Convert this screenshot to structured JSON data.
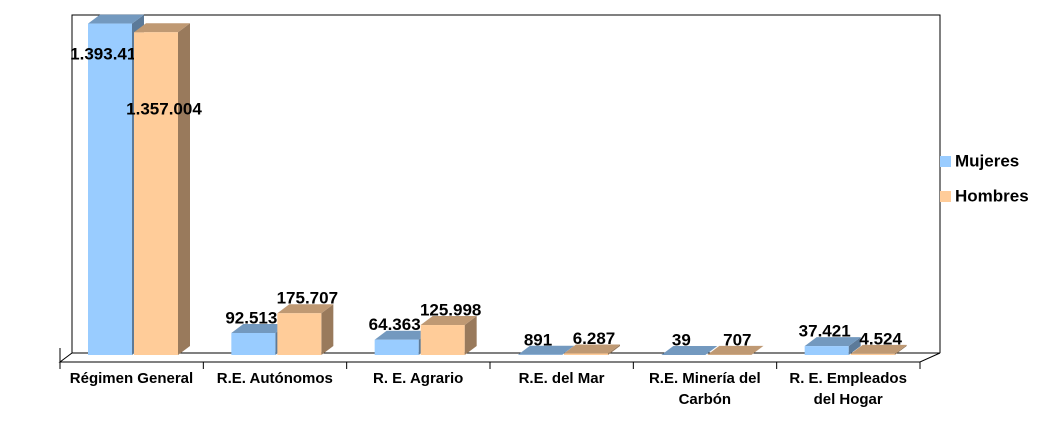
{
  "chart_data": {
    "type": "bar3d",
    "categories": [
      "Régimen General",
      "R.E. Autónomos",
      "R. E. Agrario",
      "R.E. del Mar",
      "R.E. Minería del Carbón",
      "R. E. Empleados del Hogar"
    ],
    "series": [
      {
        "name": "Mujeres",
        "color": "#99ccff",
        "values": [
          1393415,
          92513,
          64363,
          891,
          39,
          37421
        ],
        "value_labels": [
          "1.393.415",
          "92.513",
          "64.363",
          "891",
          "39",
          "37.421"
        ]
      },
      {
        "name": "Hombres",
        "color": "#ffcc99",
        "values": [
          1357004,
          175707,
          125998,
          6287,
          707,
          4524
        ],
        "value_labels": [
          "1.357.004",
          "175.707",
          "125.998",
          "6.287",
          "707",
          "4.524"
        ]
      }
    ],
    "ylim": [
      0,
      1400000
    ],
    "legend": "right"
  }
}
